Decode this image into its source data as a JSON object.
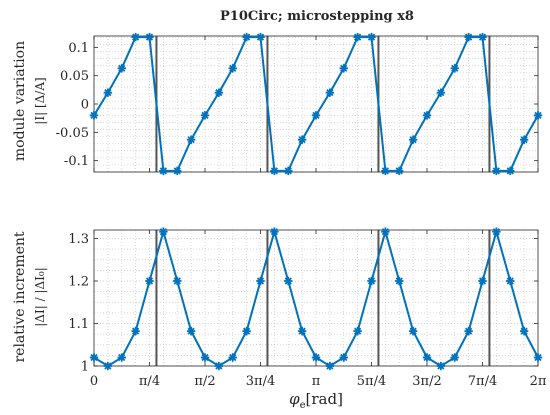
{
  "title": "P10Circ; microstepping x8",
  "xlabel": "φ",
  "xlabel_sub": "e",
  "xlabel_unit": "[rad]",
  "colors": {
    "series": "#0072BD",
    "vline": "#555555",
    "grid": "#c8c8c8",
    "axis": "#262626"
  },
  "chart_data": [
    {
      "type": "line",
      "ylabel_line1": "module variation",
      "ylabel_line2": "|I| [Δ/A]",
      "x": [
        0,
        0.19635,
        0.3927,
        0.58905,
        0.7854,
        0.98175,
        1.1781,
        1.37445,
        1.5708,
        1.76715,
        1.9635,
        2.15985,
        2.3562,
        2.55255,
        2.7489,
        2.94525,
        3.1416,
        3.33795,
        3.5343,
        3.73065,
        3.927,
        4.12335,
        4.3197,
        4.51605,
        4.7124,
        4.90875,
        5.1051,
        5.30145,
        5.4978,
        5.69415,
        5.8905,
        6.08685,
        6.2832
      ],
      "values": [
        -0.02,
        0.02,
        0.063,
        0.118,
        0.118,
        -0.118,
        -0.118,
        -0.063,
        -0.02,
        0.02,
        0.063,
        0.118,
        0.118,
        -0.118,
        -0.118,
        -0.063,
        -0.02,
        0.02,
        0.063,
        0.118,
        0.118,
        -0.118,
        -0.118,
        -0.063,
        -0.02,
        0.02,
        0.063,
        0.118,
        0.118,
        -0.118,
        -0.118,
        -0.063,
        -0.02
      ],
      "xlim": [
        0,
        6.2832
      ],
      "ylim": [
        -0.12,
        0.12
      ],
      "yticks": [
        -0.1,
        -0.05,
        0,
        0.05,
        0.1
      ],
      "yticklabels": [
        "-0.1",
        "-0.05",
        "0",
        "0.05",
        "0.1"
      ],
      "grid": true
    },
    {
      "type": "line",
      "ylabel_line1": "relative increment",
      "ylabel_line2": "|ΔI| / |ΔI₀|",
      "x": [
        0,
        0.19635,
        0.3927,
        0.58905,
        0.7854,
        0.98175,
        1.1781,
        1.37445,
        1.5708,
        1.76715,
        1.9635,
        2.15985,
        2.3562,
        2.55255,
        2.7489,
        2.94525,
        3.1416,
        3.33795,
        3.5343,
        3.73065,
        3.927,
        4.12335,
        4.3197,
        4.51605,
        4.7124,
        4.90875,
        5.1051,
        5.30145,
        5.4978,
        5.69415,
        5.8905,
        6.08685,
        6.2832
      ],
      "values": [
        1.02,
        1.0,
        1.02,
        1.082,
        1.2,
        1.316,
        1.2,
        1.082,
        1.02,
        1.0,
        1.02,
        1.082,
        1.2,
        1.316,
        1.2,
        1.082,
        1.02,
        1.0,
        1.02,
        1.082,
        1.2,
        1.316,
        1.2,
        1.082,
        1.02,
        1.0,
        1.02,
        1.082,
        1.2,
        1.316,
        1.2,
        1.082,
        1.02
      ],
      "xlim": [
        0,
        6.2832
      ],
      "ylim": [
        1.0,
        1.32
      ],
      "yticks": [
        1.0,
        1.1,
        1.2,
        1.3
      ],
      "yticklabels": [
        "1",
        "1.1",
        "1.2",
        "1.3"
      ],
      "grid": true
    }
  ],
  "vlines": [
    0.8836,
    2.4544,
    4.0252,
    5.596
  ],
  "xticks": [
    0,
    0.7854,
    1.5708,
    2.3562,
    3.1416,
    3.927,
    4.7124,
    5.4978,
    6.2832
  ],
  "xticklabels": [
    "0",
    "π/4",
    "π/2",
    "3π/4",
    "π",
    "5π/4",
    "3π/2",
    "7π/4",
    "2π"
  ]
}
